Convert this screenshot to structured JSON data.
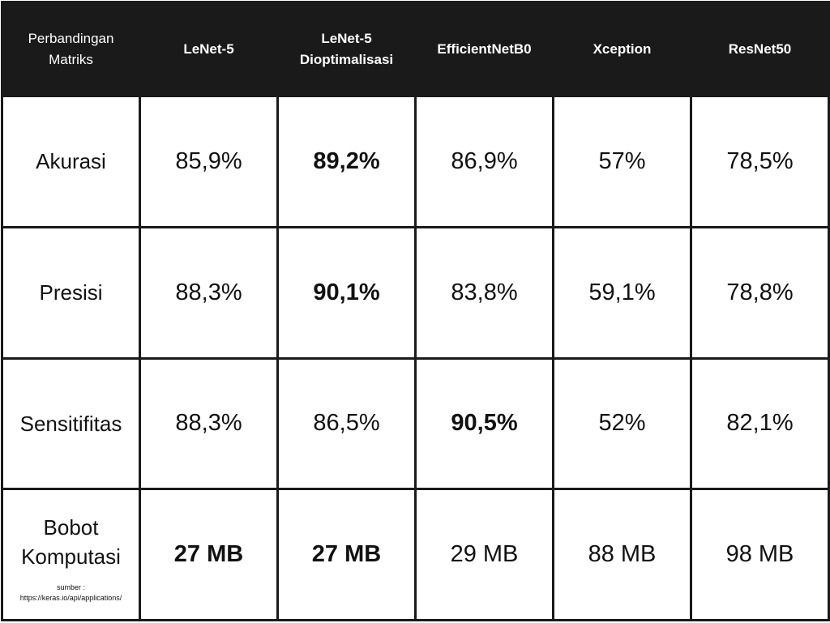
{
  "header": {
    "corner": "Perbandingan Matriks",
    "models": [
      "LeNet-5",
      "LeNet-5 Dioptimalisasi",
      "EfficientNetB0",
      "Xception",
      "ResNet50"
    ]
  },
  "rows": [
    {
      "metric": "Akurasi",
      "values": [
        "85,9%",
        "89,2%",
        "86,9%",
        "57%",
        "78,5%"
      ],
      "bold": [
        false,
        true,
        false,
        false,
        false
      ]
    },
    {
      "metric": "Presisi",
      "values": [
        "88,3%",
        "90,1%",
        "83,8%",
        "59,1%",
        "78,8%"
      ],
      "bold": [
        false,
        true,
        false,
        false,
        false
      ]
    },
    {
      "metric": "Sensitifitas",
      "values": [
        "88,3%",
        "86,5%",
        "90,5%",
        "52%",
        "82,1%"
      ],
      "bold": [
        false,
        false,
        true,
        false,
        false
      ]
    },
    {
      "metric": "Bobot Komputasi",
      "values": [
        "27 MB",
        "27 MB",
        "29 MB",
        "88 MB",
        "98 MB"
      ],
      "bold": [
        true,
        true,
        false,
        false,
        false
      ]
    }
  ],
  "source_note": "sumber : https://keras.io/api/applications/"
}
